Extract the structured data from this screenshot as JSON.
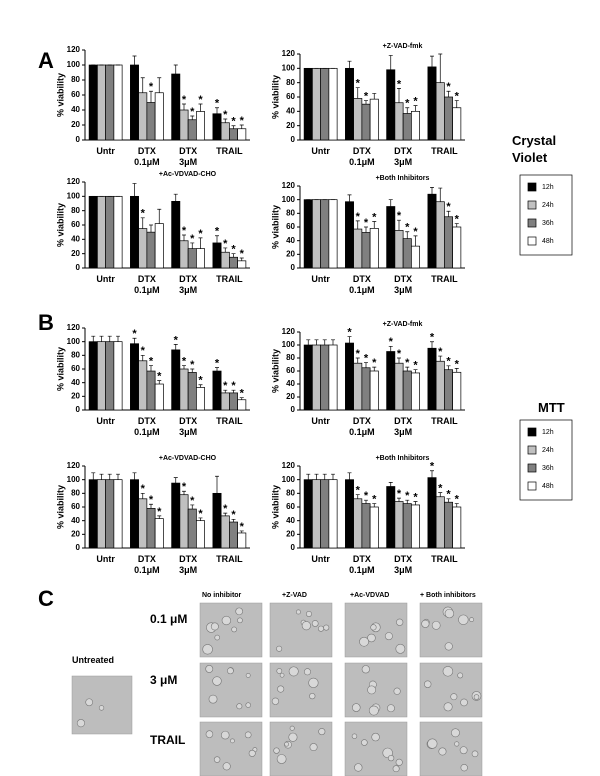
{
  "figure": {
    "panel_a": "A",
    "panel_b": "B",
    "panel_c": "C",
    "cv_label": "Crystal\nViolet",
    "mtt_label": "MTT",
    "untreated": "Untreated",
    "rows": [
      "0.1 μM",
      "3 μM",
      "TRAIL"
    ],
    "columns": [
      "No inhibitor",
      "+Z-VAD",
      "+Ac-VDVAD",
      "+ Both inhibitors"
    ]
  },
  "chart_data": [
    {
      "type": "bar",
      "ylabel": "% viability",
      "categories": [
        "Untr",
        "DTX\n0.1μM",
        "DTX\n3μM",
        "TRAIL"
      ],
      "ylim": [
        0,
        120
      ],
      "yticks": [
        0,
        20,
        40,
        60,
        80,
        100,
        120
      ],
      "series": [
        {
          "name": "12h",
          "color": "#000000",
          "values": [
            100,
            100,
            88,
            35
          ],
          "errors": [
            0,
            12,
            12,
            8
          ],
          "markers": [
            null,
            null,
            null,
            "*"
          ]
        },
        {
          "name": "24h",
          "color": "#c0c0c0",
          "values": [
            100,
            63,
            40,
            23
          ],
          "errors": [
            0,
            20,
            8,
            5
          ],
          "markers": [
            null,
            null,
            "*",
            "*"
          ]
        },
        {
          "name": "36h",
          "color": "#808080",
          "values": [
            100,
            50,
            27,
            15
          ],
          "errors": [
            0,
            15,
            5,
            4
          ],
          "markers": [
            null,
            "*",
            "*",
            "*"
          ]
        },
        {
          "name": "48h",
          "color": "#ffffff",
          "values": [
            100,
            63,
            38,
            15
          ],
          "errors": [
            0,
            20,
            10,
            5
          ],
          "markers": [
            null,
            null,
            "*",
            "*"
          ]
        }
      ]
    },
    {
      "type": "bar",
      "title": "+Z-VAD-fmk",
      "ylabel": "% viability",
      "categories": [
        "Untr",
        "DTX\n0.1μM",
        "DTX\n3μM",
        "TRAIL"
      ],
      "ylim": [
        0,
        120
      ],
      "yticks": [
        0,
        20,
        40,
        60,
        80,
        100,
        120
      ],
      "series": [
        {
          "name": "12h",
          "color": "#000000",
          "values": [
            100,
            100,
            98,
            102
          ],
          "errors": [
            0,
            10,
            20,
            15
          ],
          "markers": [
            null,
            null,
            null,
            null
          ]
        },
        {
          "name": "24h",
          "color": "#c0c0c0",
          "values": [
            100,
            58,
            52,
            80
          ],
          "errors": [
            0,
            15,
            20,
            40
          ],
          "markers": [
            null,
            "*",
            "*",
            null
          ]
        },
        {
          "name": "36h",
          "color": "#808080",
          "values": [
            100,
            50,
            37,
            60
          ],
          "errors": [
            0,
            5,
            8,
            8
          ],
          "markers": [
            null,
            "*",
            "*",
            "*"
          ]
        },
        {
          "name": "48h",
          "color": "#ffffff",
          "values": [
            100,
            57,
            40,
            45
          ],
          "errors": [
            0,
            8,
            8,
            10
          ],
          "markers": [
            null,
            null,
            "*",
            "*"
          ]
        }
      ]
    },
    {
      "type": "bar",
      "title": "+Ac-VDVAD-CHO",
      "ylabel": "% viability",
      "categories": [
        "Untr",
        "DTX\n0.1μM",
        "DTX\n3μM",
        "TRAIL"
      ],
      "ylim": [
        0,
        120
      ],
      "yticks": [
        0,
        20,
        40,
        60,
        80,
        100,
        120
      ],
      "series": [
        {
          "name": "12h",
          "color": "#000000",
          "values": [
            100,
            100,
            93,
            35
          ],
          "errors": [
            0,
            18,
            10,
            10
          ],
          "markers": [
            null,
            null,
            null,
            "*"
          ]
        },
        {
          "name": "24h",
          "color": "#c0c0c0",
          "values": [
            100,
            55,
            38,
            22
          ],
          "errors": [
            0,
            15,
            8,
            6
          ],
          "markers": [
            null,
            "*",
            "*",
            "*"
          ]
        },
        {
          "name": "36h",
          "color": "#808080",
          "values": [
            100,
            50,
            27,
            15
          ],
          "errors": [
            0,
            10,
            8,
            5
          ],
          "markers": [
            null,
            null,
            "*",
            "*"
          ]
        },
        {
          "name": "48h",
          "color": "#ffffff",
          "values": [
            100,
            62,
            27,
            10
          ],
          "errors": [
            0,
            20,
            15,
            4
          ],
          "markers": [
            null,
            null,
            "*",
            "*"
          ]
        }
      ]
    },
    {
      "type": "bar",
      "title": "+Both Inhibitors",
      "ylabel": "% viability",
      "categories": [
        "Untr",
        "DTX\n0.1μM",
        "DTX\n3μM",
        "TRAIL"
      ],
      "ylim": [
        0,
        120
      ],
      "yticks": [
        0,
        20,
        40,
        60,
        80,
        100,
        120
      ],
      "series": [
        {
          "name": "12h",
          "color": "#000000",
          "values": [
            100,
            97,
            90,
            108
          ],
          "errors": [
            0,
            10,
            10,
            10
          ],
          "markers": [
            null,
            null,
            null,
            null
          ]
        },
        {
          "name": "24h",
          "color": "#c0c0c0",
          "values": [
            100,
            57,
            55,
            97
          ],
          "errors": [
            0,
            12,
            15,
            20
          ],
          "markers": [
            null,
            "*",
            "*",
            null
          ]
        },
        {
          "name": "36h",
          "color": "#808080",
          "values": [
            100,
            52,
            43,
            75
          ],
          "errors": [
            0,
            8,
            10,
            8
          ],
          "markers": [
            null,
            "*",
            "*",
            "*"
          ]
        },
        {
          "name": "48h",
          "color": "#ffffff",
          "values": [
            100,
            58,
            32,
            60
          ],
          "errors": [
            0,
            10,
            15,
            5
          ],
          "markers": [
            null,
            "*",
            "*",
            "*"
          ]
        }
      ]
    },
    {
      "type": "bar",
      "ylabel": "% viability",
      "categories": [
        "Untr",
        "DTX\n0.1μM",
        "DTX\n3μM",
        "TRAIL"
      ],
      "ylim": [
        0,
        120
      ],
      "yticks": [
        0,
        20,
        40,
        60,
        80,
        100,
        120
      ],
      "series": [
        {
          "name": "12h",
          "color": "#000000",
          "values": [
            100,
            97,
            88,
            57
          ],
          "errors": [
            8,
            8,
            8,
            5
          ],
          "markers": [
            null,
            "*",
            "*",
            "*"
          ]
        },
        {
          "name": "24h",
          "color": "#c0c0c0",
          "values": [
            100,
            72,
            60,
            25
          ],
          "errors": [
            8,
            8,
            5,
            4
          ],
          "markers": [
            null,
            "*",
            "*",
            "*"
          ]
        },
        {
          "name": "36h",
          "color": "#808080",
          "values": [
            100,
            57,
            55,
            25
          ],
          "errors": [
            8,
            8,
            5,
            4
          ],
          "markers": [
            null,
            "*",
            "*",
            "*"
          ]
        },
        {
          "name": "48h",
          "color": "#ffffff",
          "values": [
            100,
            38,
            33,
            15
          ],
          "errors": [
            8,
            5,
            4,
            3
          ],
          "markers": [
            null,
            "*",
            "*",
            "*"
          ]
        }
      ]
    },
    {
      "type": "bar",
      "title": "+Z-VAD-fmk",
      "ylabel": "% viability",
      "categories": [
        "Untr",
        "DTX\n0.1μM",
        "DTX\n3μM",
        "TRAIL"
      ],
      "ylim": [
        0,
        120
      ],
      "yticks": [
        0,
        20,
        40,
        60,
        80,
        100,
        120
      ],
      "series": [
        {
          "name": "12h",
          "color": "#000000",
          "values": [
            100,
            103,
            90,
            95
          ],
          "errors": [
            8,
            10,
            8,
            10
          ],
          "markers": [
            null,
            "*",
            "*",
            "*"
          ]
        },
        {
          "name": "24h",
          "color": "#c0c0c0",
          "values": [
            100,
            72,
            72,
            75
          ],
          "errors": [
            8,
            8,
            8,
            8
          ],
          "markers": [
            null,
            "*",
            "*",
            "*"
          ]
        },
        {
          "name": "36h",
          "color": "#808080",
          "values": [
            100,
            65,
            60,
            62
          ],
          "errors": [
            8,
            8,
            6,
            6
          ],
          "markers": [
            null,
            "*",
            "*",
            "*"
          ]
        },
        {
          "name": "48h",
          "color": "#ffffff",
          "values": [
            100,
            60,
            57,
            58
          ],
          "errors": [
            8,
            6,
            5,
            6
          ],
          "markers": [
            null,
            "*",
            "*",
            "*"
          ]
        }
      ]
    },
    {
      "type": "bar",
      "title": "+Ac-VDVAD-CHO",
      "ylabel": "% viability",
      "categories": [
        "Untr",
        "DTX\n0.1μM",
        "DTX\n3μM",
        "TRAIL"
      ],
      "ylim": [
        0,
        120
      ],
      "yticks": [
        0,
        20,
        40,
        60,
        80,
        100,
        120
      ],
      "series": [
        {
          "name": "12h",
          "color": "#000000",
          "values": [
            100,
            100,
            95,
            80
          ],
          "errors": [
            10,
            10,
            8,
            25
          ],
          "markers": [
            null,
            null,
            null,
            null
          ]
        },
        {
          "name": "24h",
          "color": "#c0c0c0",
          "values": [
            100,
            72,
            78,
            47
          ],
          "errors": [
            8,
            8,
            5,
            4
          ],
          "markers": [
            null,
            "*",
            "*",
            "*"
          ]
        },
        {
          "name": "36h",
          "color": "#808080",
          "values": [
            100,
            58,
            57,
            38
          ],
          "errors": [
            8,
            6,
            6,
            4
          ],
          "markers": [
            null,
            "*",
            "*",
            "*"
          ]
        },
        {
          "name": "48h",
          "color": "#ffffff",
          "values": [
            100,
            43,
            40,
            22
          ],
          "errors": [
            8,
            4,
            4,
            3
          ],
          "markers": [
            null,
            "*",
            "*",
            "*"
          ]
        }
      ]
    },
    {
      "type": "bar",
      "title": "+Both Inhibitors",
      "ylabel": "% viability",
      "categories": [
        "Untr",
        "DTX\n0.1μM",
        "DTX\n3μM",
        "TRAIL"
      ],
      "ylim": [
        0,
        120
      ],
      "yticks": [
        0,
        20,
        40,
        60,
        80,
        100,
        120
      ],
      "series": [
        {
          "name": "12h",
          "color": "#000000",
          "values": [
            100,
            100,
            90,
            103
          ],
          "errors": [
            8,
            10,
            6,
            10
          ],
          "markers": [
            null,
            null,
            null,
            "*"
          ]
        },
        {
          "name": "24h",
          "color": "#c0c0c0",
          "values": [
            100,
            72,
            68,
            75
          ],
          "errors": [
            8,
            6,
            5,
            6
          ],
          "markers": [
            null,
            "*",
            "*",
            "*"
          ]
        },
        {
          "name": "36h",
          "color": "#808080",
          "values": [
            100,
            65,
            65,
            67
          ],
          "errors": [
            8,
            5,
            5,
            5
          ],
          "markers": [
            null,
            "*",
            "*",
            "*"
          ]
        },
        {
          "name": "48h",
          "color": "#ffffff",
          "values": [
            100,
            60,
            63,
            60
          ],
          "errors": [
            8,
            5,
            5,
            5
          ],
          "markers": [
            null,
            "*",
            "*",
            "*"
          ]
        }
      ]
    }
  ]
}
